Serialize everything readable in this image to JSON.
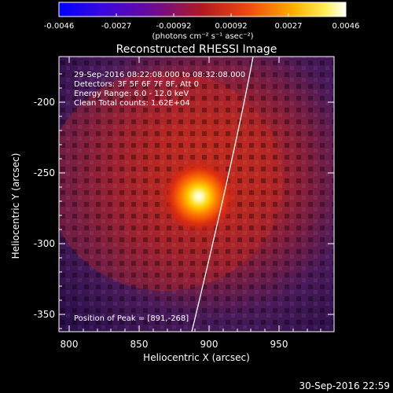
{
  "colorbar": {
    "tick_labels": [
      "-0.0046",
      "-0.0027",
      "-0.00092",
      "0.00092",
      "0.0027",
      "0.0046"
    ],
    "units_label": "(photons cm⁻² s⁻¹ asec⁻²)"
  },
  "plot": {
    "title": "Reconstructed RHESSI Image",
    "info_lines": [
      "29-Sep-2016 08:22:08.000 to 08:32:08.000",
      "Detectors: 3F 5F 6F 7F 8F, Att 0",
      "Energy Range: 6.0 - 12.0 keV",
      "Clean    Total counts: 1.62E+04"
    ],
    "peak_label": "Position of Peak = [891,-268]",
    "x_axis": {
      "label": "Heliocentric X (arcsec)",
      "ticks": [
        "800",
        "850",
        "900",
        "950"
      ]
    },
    "y_axis": {
      "label": "Heliocentric Y (arcsec)",
      "ticks": [
        "-200",
        "-250",
        "-300",
        "-350"
      ]
    }
  },
  "footer": {
    "timestamp": "30-Sep-2016 22:59"
  },
  "colors": {
    "background": "#000000",
    "foreground": "#ffffff",
    "limb_line": "#ffffff"
  }
}
